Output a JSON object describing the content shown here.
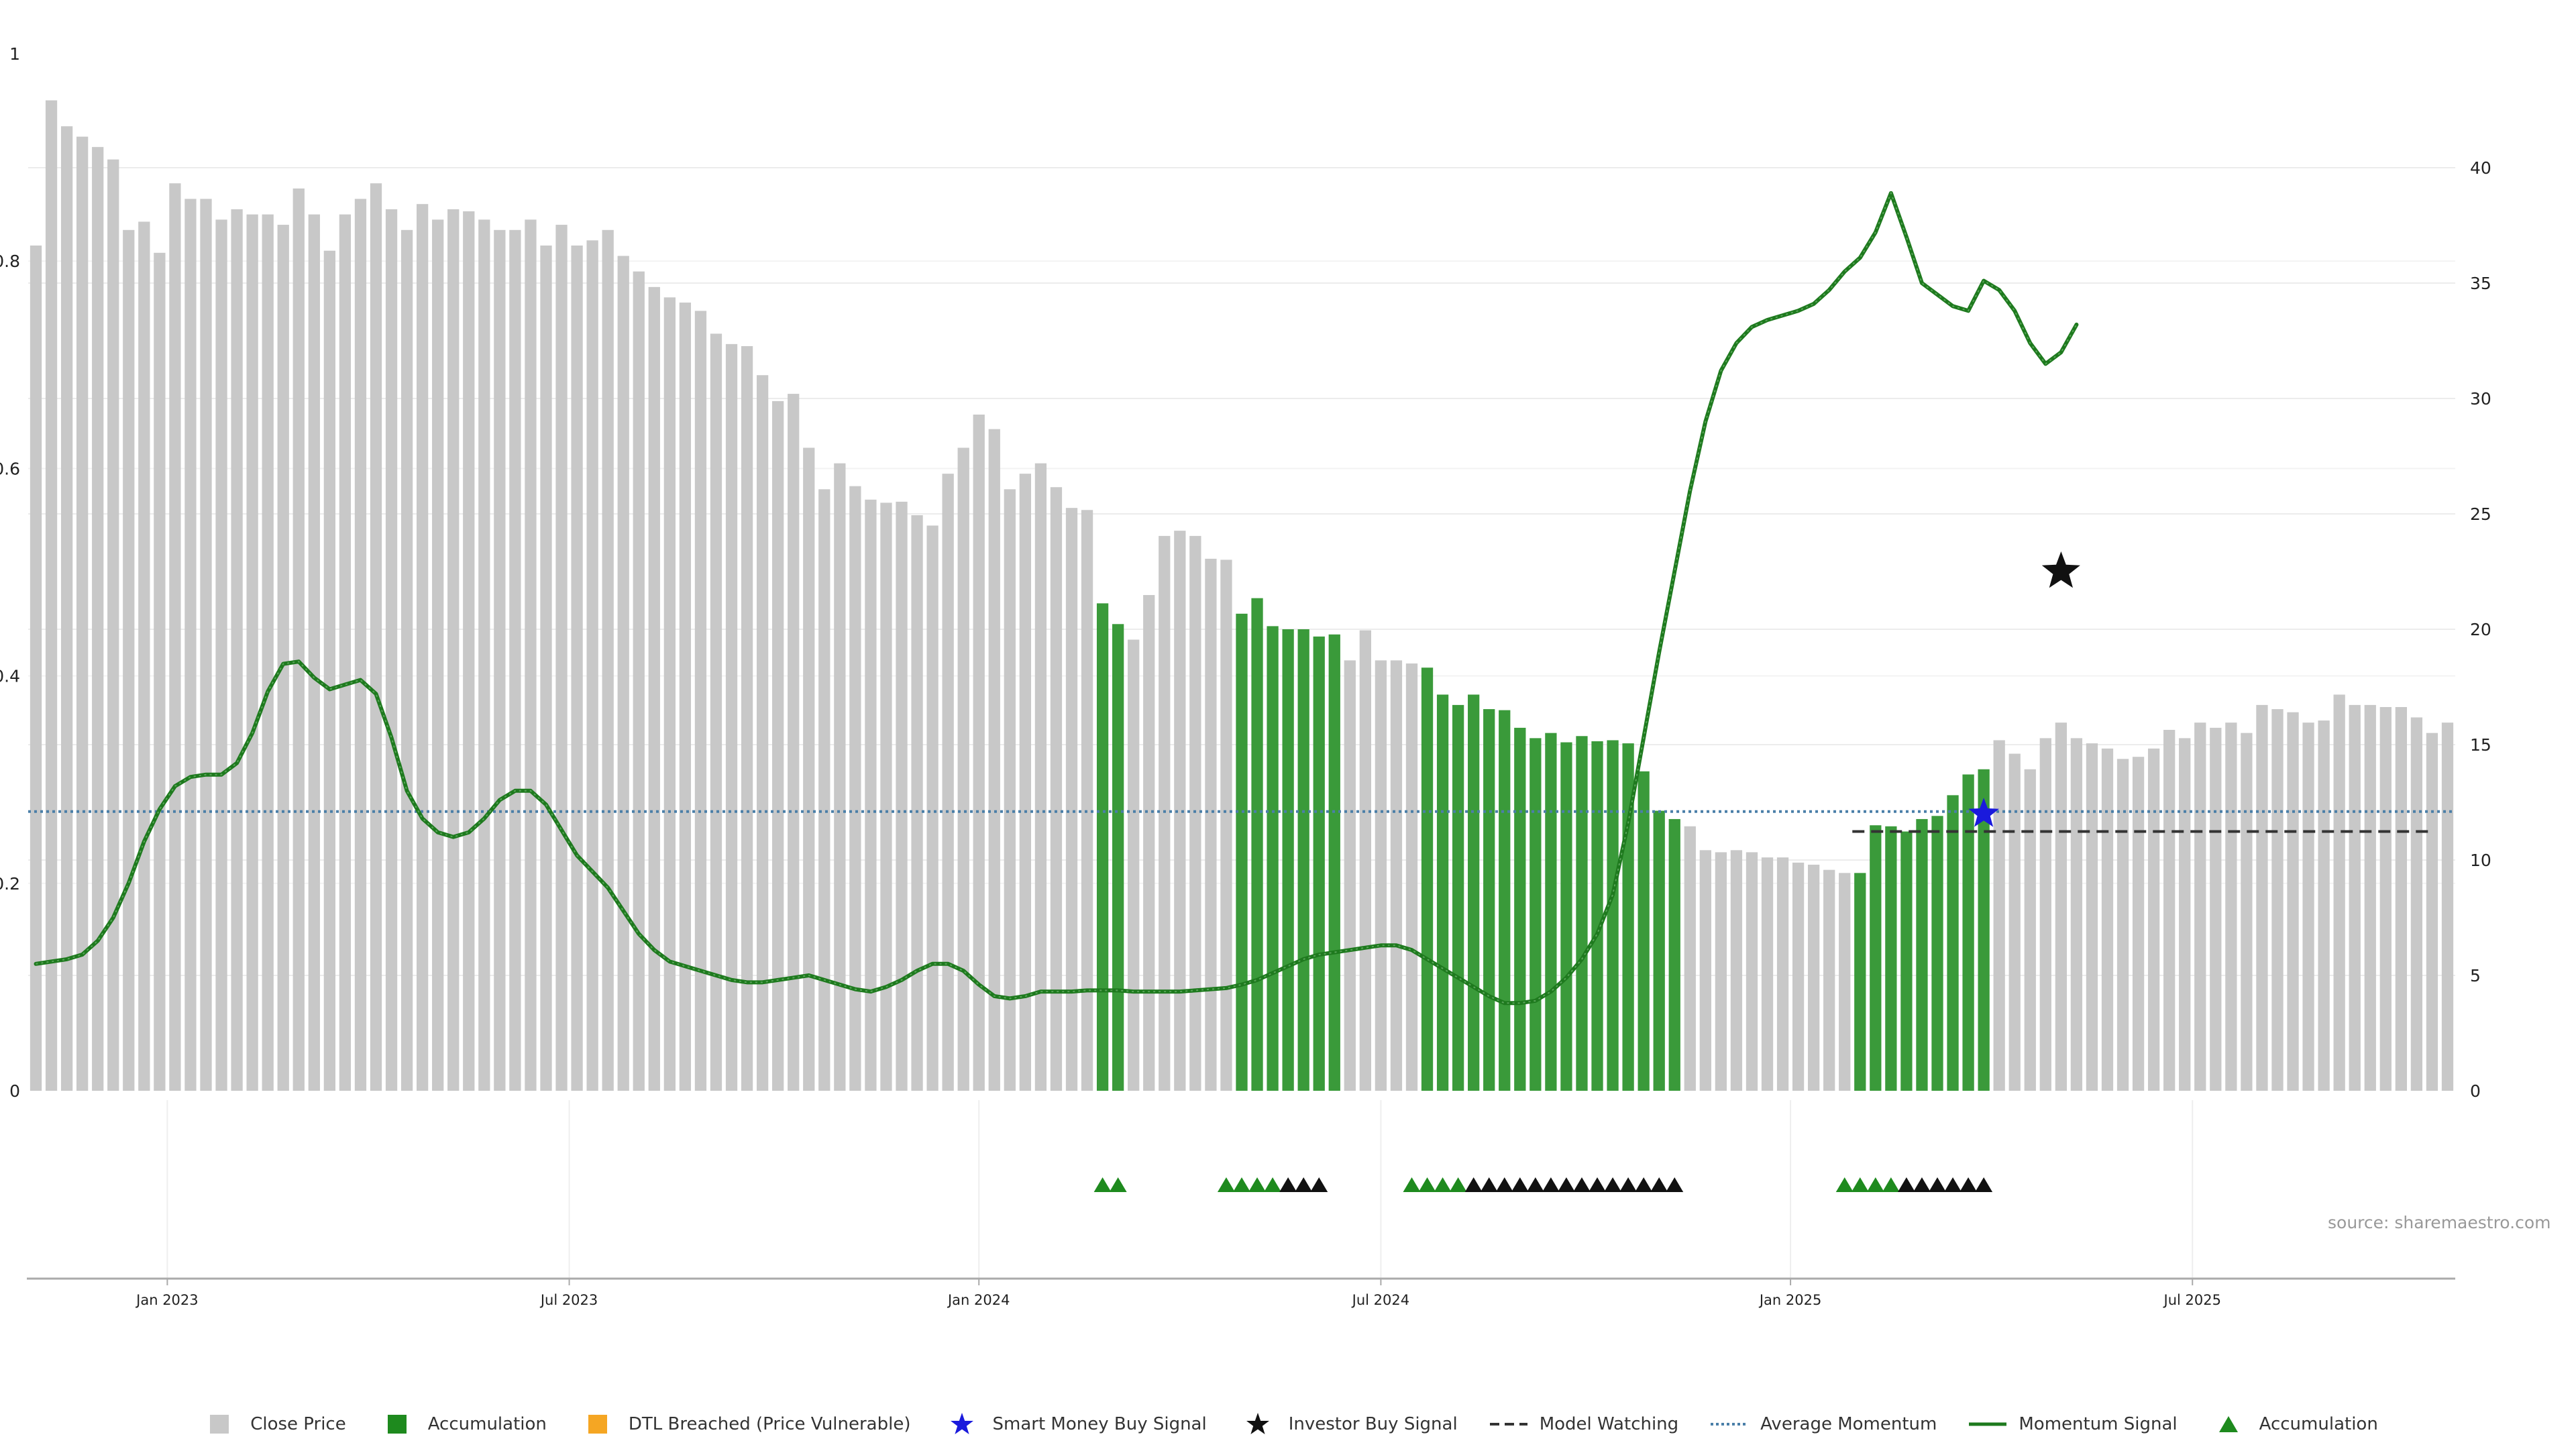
{
  "source_text": "source: sharemaestro.com",
  "colors": {
    "close": "#c8c8c8",
    "accum": "#3a9a3a",
    "momentum": "#1e7a1e",
    "avg": "#4a7fa8",
    "watch": "#333333",
    "acc_marker": "#1e8a1e",
    "inv_marker": "#111111",
    "smart": "#1a1adc",
    "dtl": "#f5a623"
  },
  "legend": [
    {
      "label": "Close Price",
      "icon": "gray-square"
    },
    {
      "label": "Accumulation",
      "icon": "green-square"
    },
    {
      "label": "DTL Breached (Price Vulnerable)",
      "icon": "orange-square"
    },
    {
      "label": "Smart Money Buy Signal",
      "icon": "blue-star"
    },
    {
      "label": "Investor Buy Signal",
      "icon": "black-star"
    },
    {
      "label": "Model Watching",
      "icon": "black-dashed-line"
    },
    {
      "label": "Average Momentum",
      "icon": "blue-dotted-line"
    },
    {
      "label": "Momentum Signal",
      "icon": "green-line"
    },
    {
      "label": "Accumulation",
      "icon": "green-triangle"
    }
  ],
  "chart_data": {
    "type": "bar",
    "left_axis": {
      "ticks": [
        "0",
        "0.2",
        "0.4",
        "0.6",
        "0.8",
        "1"
      ],
      "range": [
        0,
        1
      ]
    },
    "right_axis": {
      "ticks": [
        "0",
        "5",
        "10",
        "15",
        "20",
        "25",
        "30",
        "35",
        "40"
      ],
      "range": [
        0,
        40
      ]
    },
    "x_ticks": [
      {
        "label": "Jan 2023",
        "bar": 8.5
      },
      {
        "label": "Jul 2023",
        "bar": 34.5
      },
      {
        "label": "Jan 2024",
        "bar": 61
      },
      {
        "label": "Jul 2024",
        "bar": 87
      },
      {
        "label": "Jan 2025",
        "bar": 113.5
      },
      {
        "label": "Jul 2025",
        "bar": 139.5
      }
    ],
    "grid": true,
    "legend_position": "bottom",
    "close_price": [
      0.815,
      0.955,
      0.93,
      0.92,
      0.91,
      0.898,
      0.83,
      0.838,
      0.808,
      0.875,
      0.86,
      0.86,
      0.84,
      0.85,
      0.845,
      0.845,
      0.835,
      0.87,
      0.845,
      0.81,
      0.845,
      0.86,
      0.875,
      0.85,
      0.83,
      0.855,
      0.84,
      0.85,
      0.848,
      0.84,
      0.83,
      0.83,
      0.84,
      0.815,
      0.835,
      0.815,
      0.82,
      0.83,
      0.805,
      0.79,
      0.775,
      0.765,
      0.76,
      0.752,
      0.73,
      0.72,
      0.718,
      0.69,
      0.665,
      0.672,
      0.62,
      0.58,
      0.605,
      0.583,
      0.57,
      0.567,
      0.568,
      0.555,
      0.545,
      0.595,
      0.62,
      0.652,
      0.638,
      0.58,
      0.595,
      0.605,
      0.582,
      0.562,
      0.56,
      0.47,
      0.45,
      0.435,
      0.478,
      0.535,
      0.54,
      0.535,
      0.513,
      0.512,
      0.46,
      0.475,
      0.448,
      0.445,
      0.445,
      0.438,
      0.44,
      0.415,
      0.444,
      0.415,
      0.415,
      0.412,
      0.408,
      0.382,
      0.372,
      0.382,
      0.368,
      0.367,
      0.35,
      0.34,
      0.345,
      0.336,
      0.342,
      0.337,
      0.338,
      0.335,
      0.308,
      0.27,
      0.262,
      0.255,
      0.232,
      0.23,
      0.232,
      0.23,
      0.225,
      0.225,
      0.22,
      0.218,
      0.213,
      0.21,
      0.21,
      0.256,
      0.255,
      0.25,
      0.262,
      0.265,
      0.285,
      0.305,
      0.31,
      0.338,
      0.325,
      0.31,
      0.34,
      0.355,
      0.34,
      0.335,
      0.33,
      0.32,
      0.322,
      0.33,
      0.348,
      0.34,
      0.355,
      0.35,
      0.355,
      0.345,
      0.372,
      0.368,
      0.365,
      0.355,
      0.357,
      0.382,
      0.372,
      0.372,
      0.37,
      0.37,
      0.36,
      0.345,
      0.355
    ],
    "accumulation_bars": [
      [
        69,
        70
      ],
      [
        78,
        84
      ],
      [
        90,
        106
      ],
      [
        118,
        126
      ]
    ],
    "momentum": [
      5.5,
      5.6,
      5.7,
      5.9,
      6.5,
      7.5,
      9,
      10.8,
      12.2,
      13.2,
      13.6,
      13.7,
      13.7,
      14.2,
      15.5,
      17.3,
      18.5,
      18.6,
      17.9,
      17.4,
      17.6,
      17.8,
      17.2,
      15.3,
      13,
      11.8,
      11.2,
      11,
      11.2,
      11.8,
      12.6,
      13,
      13,
      12.4,
      11.3,
      10.2,
      9.5,
      8.8,
      7.8,
      6.8,
      6.1,
      5.6,
      5.4,
      5.2,
      5,
      4.8,
      4.7,
      4.7,
      4.8,
      4.9,
      5,
      4.8,
      4.6,
      4.4,
      4.3,
      4.5,
      4.8,
      5.2,
      5.5,
      5.5,
      5.2,
      4.6,
      4.1,
      4,
      4.1,
      4.3,
      4.3,
      4.3,
      4.35,
      4.35,
      4.35,
      4.3,
      4.3,
      4.3,
      4.3,
      4.35,
      4.4,
      4.45,
      4.6,
      4.8,
      5.1,
      5.4,
      5.7,
      5.9,
      6,
      6.1,
      6.2,
      6.3,
      6.3,
      6.1,
      5.7,
      5.3,
      4.9,
      4.5,
      4.1,
      3.8,
      3.8,
      3.9,
      4.3,
      4.9,
      5.7,
      6.8,
      8.5,
      11.6,
      15.3,
      19,
      22.5,
      26,
      29,
      31.2,
      32.4,
      33.1,
      33.4,
      33.6,
      33.8,
      34.1,
      34.7,
      35.5,
      36.1,
      37.2,
      38.9,
      37,
      35,
      34.5,
      34,
      33.8,
      35.1,
      34.7,
      33.8,
      32.4,
      31.5,
      32,
      33.2
    ],
    "average_momentum": 12.1,
    "model_watching": {
      "start_bar": 118,
      "end_bar": 155,
      "level": 0.25
    },
    "markers": {
      "accumulation": [
        69,
        70,
        77,
        78,
        79,
        80,
        89,
        90,
        91,
        92,
        117,
        118,
        119,
        120
      ],
      "investor_buy": [
        81,
        82,
        83,
        93,
        94,
        95,
        96,
        97,
        98,
        99,
        100,
        101,
        102,
        103,
        104,
        105,
        106,
        121,
        122,
        123,
        124,
        125,
        126
      ],
      "smart_money_buy": [
        {
          "bar": 126,
          "value": 12
        }
      ],
      "investor_buy_signal": [
        {
          "bar": 131,
          "value": 22.5
        }
      ]
    }
  }
}
